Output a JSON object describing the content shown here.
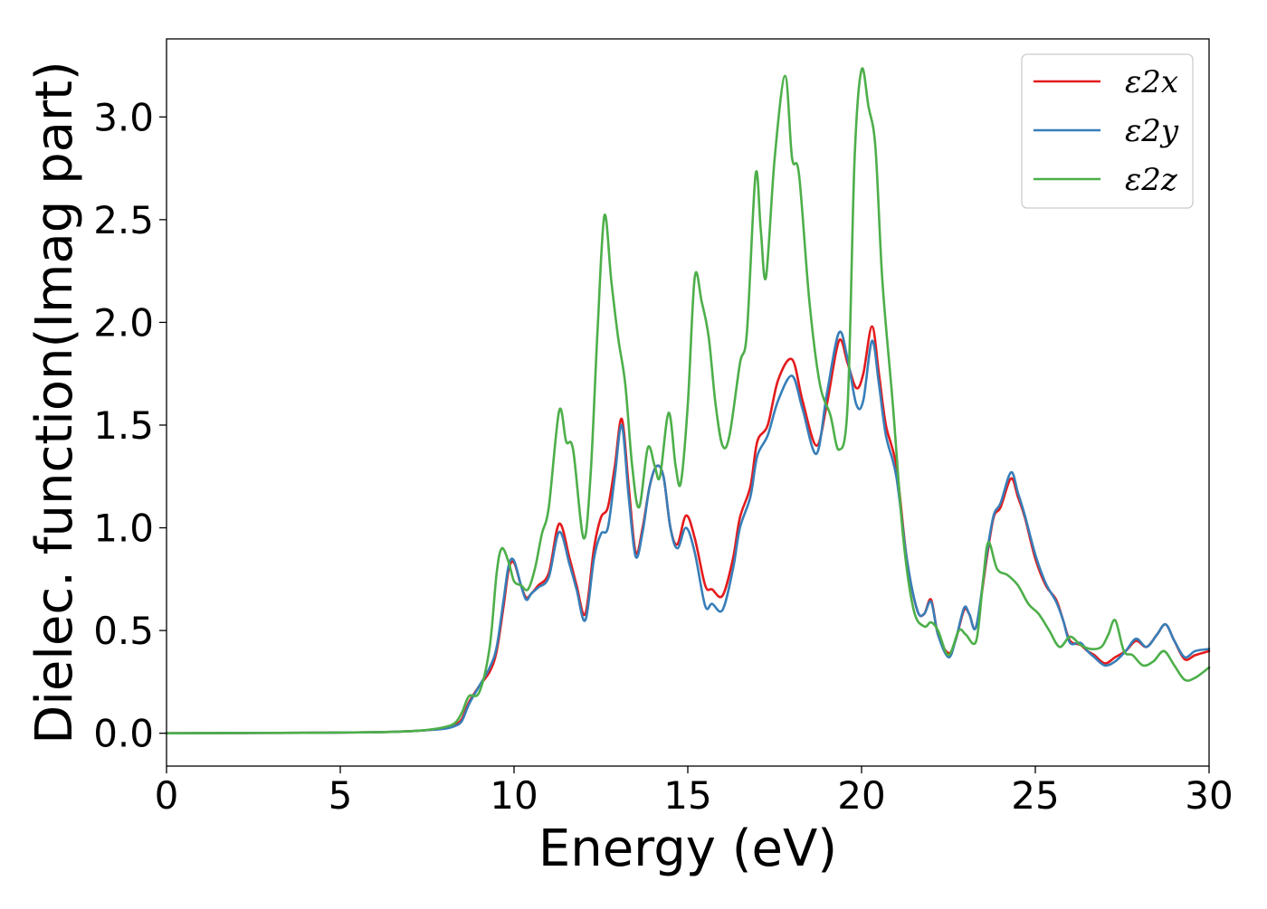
{
  "chart_data": {
    "type": "line",
    "title": "",
    "xlabel": "Energy (eV)",
    "ylabel": "Dielec. function(Imag part)",
    "xlim": [
      0,
      30
    ],
    "ylim": [
      -0.16,
      3.38
    ],
    "xticks": [
      0,
      5,
      10,
      15,
      20,
      25,
      30
    ],
    "xtick_labels": [
      "0",
      "5",
      "10",
      "15",
      "20",
      "25",
      "30"
    ],
    "yticks": [
      0.0,
      0.5,
      1.0,
      1.5,
      2.0,
      2.5,
      3.0
    ],
    "ytick_labels": [
      "0.0",
      "0.5",
      "1.0",
      "1.5",
      "2.0",
      "2.5",
      "3.0"
    ],
    "grid": false,
    "legend_position": "top-right",
    "series": [
      {
        "name": "ε2x",
        "color": "#e41a1c",
        "points": [
          [
            0,
            0.0
          ],
          [
            2,
            0.001
          ],
          [
            4,
            0.002
          ],
          [
            6,
            0.005
          ],
          [
            7,
            0.01
          ],
          [
            7.5,
            0.015
          ],
          [
            8,
            0.025
          ],
          [
            8.3,
            0.04
          ],
          [
            8.5,
            0.07
          ],
          [
            8.7,
            0.15
          ],
          [
            9,
            0.23
          ],
          [
            9.3,
            0.3
          ],
          [
            9.5,
            0.4
          ],
          [
            9.7,
            0.62
          ],
          [
            9.85,
            0.8
          ],
          [
            10,
            0.83
          ],
          [
            10.2,
            0.72
          ],
          [
            10.35,
            0.66
          ],
          [
            10.5,
            0.68
          ],
          [
            10.7,
            0.72
          ],
          [
            11,
            0.78
          ],
          [
            11.3,
            1.02
          ],
          [
            11.6,
            0.85
          ],
          [
            11.8,
            0.72
          ],
          [
            12.05,
            0.58
          ],
          [
            12.3,
            0.9
          ],
          [
            12.5,
            1.05
          ],
          [
            12.7,
            1.1
          ],
          [
            12.9,
            1.3
          ],
          [
            13.1,
            1.53
          ],
          [
            13.3,
            1.2
          ],
          [
            13.5,
            0.88
          ],
          [
            13.7,
            1.0
          ],
          [
            13.9,
            1.2
          ],
          [
            14.1,
            1.3
          ],
          [
            14.3,
            1.25
          ],
          [
            14.5,
            1.0
          ],
          [
            14.7,
            0.92
          ],
          [
            14.95,
            1.06
          ],
          [
            15.2,
            0.95
          ],
          [
            15.5,
            0.72
          ],
          [
            15.7,
            0.7
          ],
          [
            16,
            0.67
          ],
          [
            16.3,
            0.85
          ],
          [
            16.5,
            1.05
          ],
          [
            16.8,
            1.2
          ],
          [
            17.0,
            1.42
          ],
          [
            17.3,
            1.5
          ],
          [
            17.6,
            1.72
          ],
          [
            18.0,
            1.82
          ],
          [
            18.3,
            1.62
          ],
          [
            18.7,
            1.4
          ],
          [
            19.0,
            1.6
          ],
          [
            19.35,
            1.91
          ],
          [
            19.6,
            1.8
          ],
          [
            19.85,
            1.68
          ],
          [
            20.05,
            1.75
          ],
          [
            20.3,
            1.98
          ],
          [
            20.5,
            1.75
          ],
          [
            20.7,
            1.5
          ],
          [
            21.0,
            1.3
          ],
          [
            21.3,
            0.85
          ],
          [
            21.6,
            0.6
          ],
          [
            21.8,
            0.58
          ],
          [
            22.0,
            0.65
          ],
          [
            22.2,
            0.48
          ],
          [
            22.5,
            0.39
          ],
          [
            22.7,
            0.45
          ],
          [
            22.95,
            0.6
          ],
          [
            23.1,
            0.58
          ],
          [
            23.3,
            0.52
          ],
          [
            23.6,
            0.85
          ],
          [
            23.8,
            1.05
          ],
          [
            24.0,
            1.1
          ],
          [
            24.3,
            1.24
          ],
          [
            24.5,
            1.15
          ],
          [
            24.7,
            1.05
          ],
          [
            25.0,
            0.85
          ],
          [
            25.3,
            0.72
          ],
          [
            25.6,
            0.65
          ],
          [
            25.8,
            0.55
          ],
          [
            26.0,
            0.45
          ],
          [
            26.3,
            0.43
          ],
          [
            26.5,
            0.4
          ],
          [
            26.7,
            0.38
          ],
          [
            27.0,
            0.34
          ],
          [
            27.3,
            0.37
          ],
          [
            27.6,
            0.4
          ],
          [
            27.9,
            0.45
          ],
          [
            28.2,
            0.42
          ],
          [
            28.5,
            0.48
          ],
          [
            28.75,
            0.53
          ],
          [
            29.0,
            0.45
          ],
          [
            29.3,
            0.36
          ],
          [
            29.6,
            0.38
          ],
          [
            30.0,
            0.4
          ]
        ]
      },
      {
        "name": "ε2y",
        "color": "#377eb8",
        "points": [
          [
            0,
            0.0
          ],
          [
            2,
            0.001
          ],
          [
            4,
            0.002
          ],
          [
            6,
            0.005
          ],
          [
            7,
            0.01
          ],
          [
            7.5,
            0.015
          ],
          [
            8,
            0.022
          ],
          [
            8.3,
            0.035
          ],
          [
            8.5,
            0.06
          ],
          [
            8.7,
            0.14
          ],
          [
            9,
            0.23
          ],
          [
            9.3,
            0.32
          ],
          [
            9.5,
            0.42
          ],
          [
            9.7,
            0.65
          ],
          [
            9.85,
            0.82
          ],
          [
            10,
            0.84
          ],
          [
            10.2,
            0.72
          ],
          [
            10.35,
            0.65
          ],
          [
            10.5,
            0.68
          ],
          [
            10.7,
            0.71
          ],
          [
            11,
            0.76
          ],
          [
            11.3,
            0.98
          ],
          [
            11.6,
            0.82
          ],
          [
            11.8,
            0.7
          ],
          [
            12.05,
            0.55
          ],
          [
            12.3,
            0.85
          ],
          [
            12.5,
            0.97
          ],
          [
            12.7,
            1.0
          ],
          [
            12.9,
            1.25
          ],
          [
            13.1,
            1.5
          ],
          [
            13.3,
            1.15
          ],
          [
            13.5,
            0.86
          ],
          [
            13.7,
            0.98
          ],
          [
            13.9,
            1.2
          ],
          [
            14.1,
            1.3
          ],
          [
            14.3,
            1.25
          ],
          [
            14.5,
            1.0
          ],
          [
            14.7,
            0.9
          ],
          [
            14.95,
            1.0
          ],
          [
            15.2,
            0.88
          ],
          [
            15.5,
            0.62
          ],
          [
            15.7,
            0.63
          ],
          [
            16,
            0.6
          ],
          [
            16.3,
            0.8
          ],
          [
            16.5,
            1.0
          ],
          [
            16.8,
            1.15
          ],
          [
            17.0,
            1.35
          ],
          [
            17.3,
            1.45
          ],
          [
            17.6,
            1.62
          ],
          [
            18.0,
            1.74
          ],
          [
            18.3,
            1.58
          ],
          [
            18.7,
            1.36
          ],
          [
            19.0,
            1.65
          ],
          [
            19.35,
            1.95
          ],
          [
            19.6,
            1.82
          ],
          [
            19.85,
            1.6
          ],
          [
            20.05,
            1.62
          ],
          [
            20.3,
            1.91
          ],
          [
            20.5,
            1.7
          ],
          [
            20.7,
            1.45
          ],
          [
            21.0,
            1.25
          ],
          [
            21.3,
            0.85
          ],
          [
            21.6,
            0.6
          ],
          [
            21.8,
            0.58
          ],
          [
            22.0,
            0.64
          ],
          [
            22.2,
            0.48
          ],
          [
            22.5,
            0.37
          ],
          [
            22.7,
            0.45
          ],
          [
            22.95,
            0.61
          ],
          [
            23.1,
            0.58
          ],
          [
            23.3,
            0.52
          ],
          [
            23.6,
            0.87
          ],
          [
            23.8,
            1.06
          ],
          [
            24.0,
            1.12
          ],
          [
            24.3,
            1.27
          ],
          [
            24.5,
            1.17
          ],
          [
            24.7,
            1.06
          ],
          [
            25.0,
            0.87
          ],
          [
            25.3,
            0.73
          ],
          [
            25.6,
            0.64
          ],
          [
            25.8,
            0.55
          ],
          [
            26.0,
            0.44
          ],
          [
            26.3,
            0.44
          ],
          [
            26.5,
            0.4
          ],
          [
            26.7,
            0.37
          ],
          [
            27.0,
            0.33
          ],
          [
            27.3,
            0.35
          ],
          [
            27.6,
            0.4
          ],
          [
            27.9,
            0.46
          ],
          [
            28.2,
            0.42
          ],
          [
            28.5,
            0.48
          ],
          [
            28.75,
            0.53
          ],
          [
            29.0,
            0.45
          ],
          [
            29.3,
            0.37
          ],
          [
            29.6,
            0.4
          ],
          [
            30.0,
            0.41
          ]
        ]
      },
      {
        "name": "ε2z",
        "color": "#4daf4a",
        "points": [
          [
            0,
            0.0
          ],
          [
            2,
            0.001
          ],
          [
            4,
            0.002
          ],
          [
            6,
            0.005
          ],
          [
            7,
            0.01
          ],
          [
            7.5,
            0.016
          ],
          [
            8,
            0.03
          ],
          [
            8.3,
            0.05
          ],
          [
            8.5,
            0.1
          ],
          [
            8.7,
            0.18
          ],
          [
            9,
            0.2
          ],
          [
            9.3,
            0.42
          ],
          [
            9.5,
            0.78
          ],
          [
            9.65,
            0.9
          ],
          [
            9.85,
            0.83
          ],
          [
            10,
            0.74
          ],
          [
            10.2,
            0.72
          ],
          [
            10.4,
            0.7
          ],
          [
            10.6,
            0.8
          ],
          [
            10.8,
            0.97
          ],
          [
            11.0,
            1.1
          ],
          [
            11.3,
            1.57
          ],
          [
            11.5,
            1.42
          ],
          [
            11.7,
            1.38
          ],
          [
            12.0,
            0.95
          ],
          [
            12.2,
            1.25
          ],
          [
            12.4,
            1.95
          ],
          [
            12.6,
            2.52
          ],
          [
            12.8,
            2.2
          ],
          [
            13.0,
            1.92
          ],
          [
            13.2,
            1.7
          ],
          [
            13.4,
            1.3
          ],
          [
            13.6,
            1.1
          ],
          [
            13.85,
            1.39
          ],
          [
            14.05,
            1.3
          ],
          [
            14.2,
            1.25
          ],
          [
            14.45,
            1.56
          ],
          [
            14.65,
            1.3
          ],
          [
            14.8,
            1.22
          ],
          [
            15.0,
            1.6
          ],
          [
            15.2,
            2.22
          ],
          [
            15.4,
            2.1
          ],
          [
            15.6,
            1.93
          ],
          [
            15.8,
            1.6
          ],
          [
            16.0,
            1.4
          ],
          [
            16.2,
            1.45
          ],
          [
            16.5,
            1.8
          ],
          [
            16.7,
            1.95
          ],
          [
            16.95,
            2.72
          ],
          [
            17.1,
            2.45
          ],
          [
            17.25,
            2.22
          ],
          [
            17.5,
            2.8
          ],
          [
            17.8,
            3.2
          ],
          [
            18.0,
            2.8
          ],
          [
            18.2,
            2.72
          ],
          [
            18.5,
            2.1
          ],
          [
            18.8,
            1.7
          ],
          [
            19.1,
            1.55
          ],
          [
            19.35,
            1.38
          ],
          [
            19.6,
            1.6
          ],
          [
            19.8,
            2.8
          ],
          [
            20.0,
            3.23
          ],
          [
            20.2,
            3.05
          ],
          [
            20.4,
            2.85
          ],
          [
            20.6,
            2.2
          ],
          [
            20.9,
            1.6
          ],
          [
            21.2,
            0.95
          ],
          [
            21.5,
            0.6
          ],
          [
            21.8,
            0.52
          ],
          [
            22.0,
            0.54
          ],
          [
            22.2,
            0.5
          ],
          [
            22.5,
            0.38
          ],
          [
            22.8,
            0.5
          ],
          [
            23.0,
            0.48
          ],
          [
            23.3,
            0.45
          ],
          [
            23.5,
            0.75
          ],
          [
            23.65,
            0.93
          ],
          [
            23.9,
            0.8
          ],
          [
            24.2,
            0.77
          ],
          [
            24.5,
            0.72
          ],
          [
            24.8,
            0.63
          ],
          [
            25.1,
            0.58
          ],
          [
            25.4,
            0.5
          ],
          [
            25.7,
            0.42
          ],
          [
            26.0,
            0.47
          ],
          [
            26.3,
            0.43
          ],
          [
            26.6,
            0.41
          ],
          [
            26.9,
            0.42
          ],
          [
            27.1,
            0.48
          ],
          [
            27.3,
            0.55
          ],
          [
            27.55,
            0.4
          ],
          [
            27.8,
            0.38
          ],
          [
            28.1,
            0.33
          ],
          [
            28.4,
            0.35
          ],
          [
            28.7,
            0.4
          ],
          [
            29.0,
            0.33
          ],
          [
            29.3,
            0.26
          ],
          [
            29.6,
            0.27
          ],
          [
            30.0,
            0.32
          ]
        ]
      }
    ]
  }
}
